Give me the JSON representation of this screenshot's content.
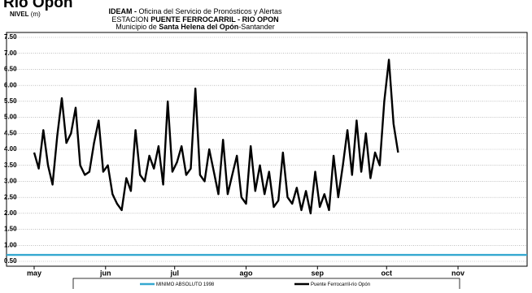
{
  "chart_data": {
    "type": "line",
    "title": "Río Opón",
    "header": [
      [
        "IDEAM - ",
        "Oficina del Servicio de Pronósticos y Alertas"
      ],
      [
        "ESTACION ",
        "PUENTE FERROCARRIL - RIO OPON"
      ],
      [
        "Municipio de ",
        "Santa Helena del Opón",
        "-Santander"
      ]
    ],
    "ylabel": "NIVEL",
    "ylabel_unit": "(m)",
    "xlim": [
      -12,
      214
    ],
    "xticks": [
      {
        "value": 0,
        "label": "may"
      },
      {
        "value": 31,
        "label": "jun"
      },
      {
        "value": 61,
        "label": "jul"
      },
      {
        "value": 92,
        "label": "ago"
      },
      {
        "value": 123,
        "label": "sep"
      },
      {
        "value": 153,
        "label": "oct"
      },
      {
        "value": 184,
        "label": "nov"
      }
    ],
    "ylim": [
      0.5,
      7.5
    ],
    "yticks": [
      {
        "value": 0.5,
        "label": "0.50"
      },
      {
        "value": 1,
        "label": "1.00"
      },
      {
        "value": 1.5,
        "label": "1.50"
      },
      {
        "value": 2,
        "label": "2.00"
      },
      {
        "value": 2.5,
        "label": "2.50"
      },
      {
        "value": 3,
        "label": "3.00"
      },
      {
        "value": 3.5,
        "label": "3.50"
      },
      {
        "value": 4,
        "label": "4.00"
      },
      {
        "value": 4.5,
        "label": "4.50"
      },
      {
        "value": 5,
        "label": "5.00"
      },
      {
        "value": 5.5,
        "label": "5.50"
      },
      {
        "value": 6,
        "label": "6.00"
      },
      {
        "value": 6.5,
        "label": "6.50"
      },
      {
        "value": 7,
        "label": "7.00"
      },
      {
        "value": 7.5,
        "label": "7.50"
      }
    ],
    "grid": true,
    "series": [
      {
        "name": "MINIMO ABSOLUTO 1998",
        "color": "#35a8d0",
        "x": [
          -12,
          214
        ],
        "values": [
          0.7,
          0.7
        ]
      },
      {
        "name": "Puente Ferrocarril-rio Opón",
        "color": "#000000",
        "x": [
          0,
          2,
          4,
          6,
          8,
          10,
          12,
          14,
          16,
          18,
          20,
          22,
          24,
          26,
          28,
          30,
          32,
          34,
          36,
          38,
          40,
          42,
          44,
          46,
          48,
          50,
          52,
          54,
          56,
          58,
          60,
          62,
          64,
          66,
          68,
          70,
          72,
          74,
          76,
          78,
          80,
          82,
          84,
          86,
          88,
          90,
          92,
          94,
          96,
          98,
          100,
          102,
          104,
          106,
          108,
          110,
          112,
          114,
          116,
          118,
          120,
          122,
          124,
          126,
          128,
          130,
          132,
          134,
          136,
          138,
          140,
          142,
          144,
          146,
          148,
          150,
          152,
          154,
          156,
          158
        ],
        "values": [
          3.9,
          3.4,
          4.6,
          3.5,
          2.9,
          4.4,
          5.6,
          4.2,
          4.5,
          5.3,
          3.5,
          3.2,
          3.3,
          4.2,
          4.9,
          3.3,
          3.5,
          2.6,
          2.3,
          2.1,
          3.1,
          2.7,
          4.6,
          3.2,
          3.0,
          3.8,
          3.4,
          4.1,
          2.9,
          5.5,
          3.3,
          3.6,
          4.1,
          3.2,
          3.4,
          5.9,
          3.2,
          3.0,
          4.0,
          3.3,
          2.6,
          4.3,
          2.6,
          3.2,
          3.8,
          2.5,
          2.3,
          4.1,
          2.7,
          3.5,
          2.6,
          3.3,
          2.2,
          2.4,
          3.9,
          2.5,
          2.3,
          2.8,
          2.1,
          2.7,
          2.0,
          3.3,
          2.2,
          2.6,
          2.1,
          3.8,
          2.5,
          3.5,
          4.6,
          3.2,
          4.9,
          3.3,
          4.5,
          3.1,
          3.9,
          3.5,
          5.5,
          6.8,
          4.8,
          3.9
        ]
      }
    ]
  }
}
